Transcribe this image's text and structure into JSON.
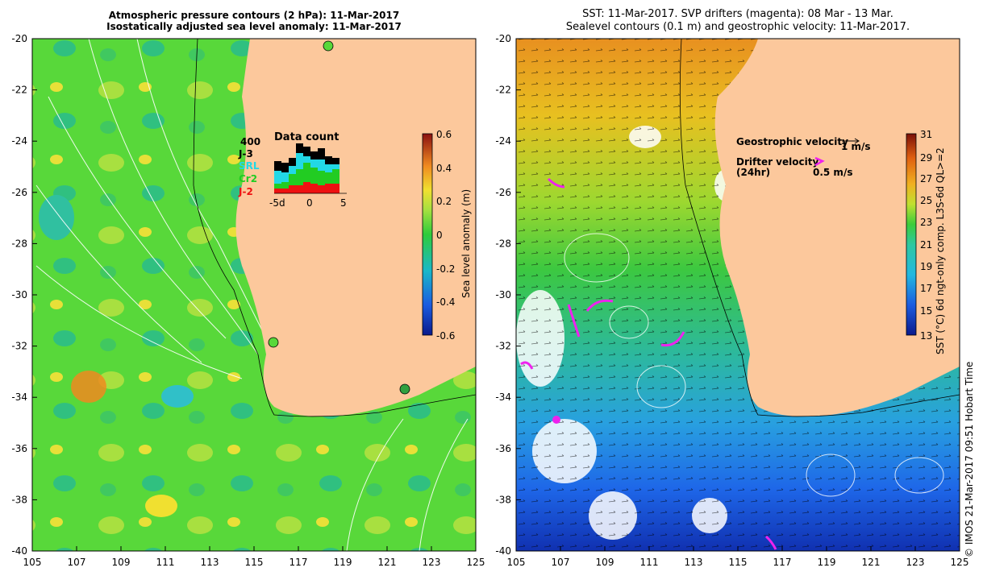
{
  "left_map": {
    "title_line1": "Atmospheric pressure contours (2 hPa): 11-Mar-2017",
    "title_line2": "Isostatically adjusted sea level anomaly: 11-Mar-2017",
    "colorbar_label": "Sea level anomaly (m)",
    "colorbar_ticks": [
      "0.6",
      "0.4",
      "0.2",
      "0",
      "-0.2",
      "-0.4",
      "-0.6"
    ],
    "inset": {
      "title": "Data count",
      "max_label": "400",
      "legend": [
        {
          "label": "J-3",
          "color": "#000000"
        },
        {
          "label": "SRL",
          "color": "#22d8e6"
        },
        {
          "label": "Cr2",
          "color": "#22cc22"
        },
        {
          "label": "J-2",
          "color": "#ee1111"
        }
      ],
      "x_ticks": [
        "-5d",
        "0",
        "5"
      ]
    }
  },
  "right_map": {
    "title_line1": "SST: 11-Mar-2017. SVP drifters (magenta): 08 Mar - 13 Mar.",
    "title_line2": "Sealevel contours (0.1 m) and geostrophic velocity: 11-Mar-2017.",
    "colorbar_label": "SST (°C) 6d ngt-only comp. L3S-6d QL>=2",
    "colorbar_ticks": [
      "31",
      "29",
      "27",
      "25",
      "23",
      "21",
      "19",
      "17",
      "15",
      "13"
    ],
    "legend": {
      "geostrophic_label": "Geostrophic velocity",
      "geostrophic_scale": "1 m/s",
      "drifter_label": "Drifter velocity",
      "drifter_sub": "(24hr)",
      "drifter_scale": "0.5 m/s"
    }
  },
  "axes": {
    "x_ticks": [
      "105",
      "107",
      "109",
      "111",
      "113",
      "115",
      "117",
      "119",
      "121",
      "123",
      "125"
    ],
    "y_ticks": [
      "-20",
      "-22",
      "-24",
      "-26",
      "-28",
      "-30",
      "-32",
      "-34",
      "-36",
      "-38",
      "-40"
    ]
  },
  "credit": "© IMOS 21-Mar-2017 09:51 Hobart Time",
  "colors": {
    "land": "#fcc89c",
    "ocean_green": "#55dd33",
    "sst_warm": "#f0a020",
    "sst_cold": "#2266ee",
    "drifter": "#ee22ee"
  }
}
